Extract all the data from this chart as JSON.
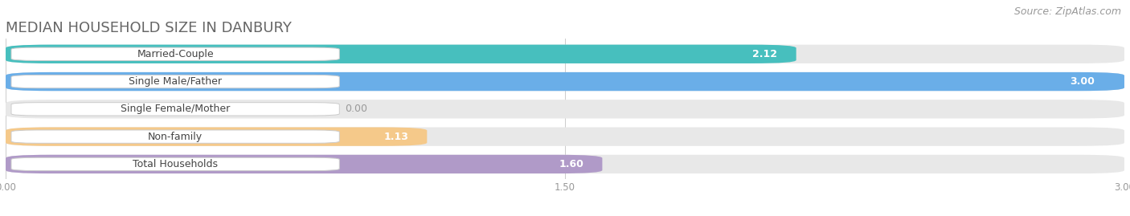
{
  "title": "MEDIAN HOUSEHOLD SIZE IN DANBURY",
  "source": "Source: ZipAtlas.com",
  "categories": [
    "Married-Couple",
    "Single Male/Father",
    "Single Female/Mother",
    "Non-family",
    "Total Households"
  ],
  "values": [
    2.12,
    3.0,
    0.0,
    1.13,
    1.6
  ],
  "bar_colors": [
    "#47bfbe",
    "#6aaee8",
    "#f490aa",
    "#f5c98a",
    "#b09ac8"
  ],
  "bar_bg_color": "#e8e8e8",
  "xmax": 3.0,
  "xticks": [
    0.0,
    1.5,
    3.0
  ],
  "xtick_labels": [
    "0.00",
    "1.50",
    "3.00"
  ],
  "title_fontsize": 13,
  "source_fontsize": 9,
  "bar_label_fontsize": 9,
  "value_fontsize": 9,
  "fig_bg_color": "#ffffff"
}
